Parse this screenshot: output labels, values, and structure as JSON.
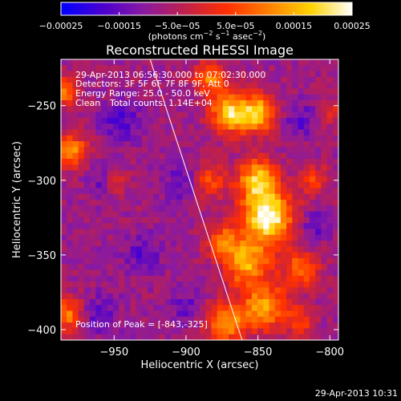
{
  "chart_data": {
    "type": "heatmap",
    "title": "Reconstructed RHESSI Image",
    "xlabel": "Heliocentric X (arcsec)",
    "ylabel": "Heliocentric Y (arcsec)",
    "xlim": [
      -987,
      -794
    ],
    "ylim": [
      -407,
      -219
    ],
    "x_ticks": [
      -950,
      -900,
      -850,
      -800
    ],
    "y_ticks": [
      -250,
      -300,
      -350,
      -400
    ],
    "x_tick_labels": [
      "−950",
      "−900",
      "−850",
      "−800"
    ],
    "y_tick_labels": [
      "−250",
      "−300",
      "−350",
      "−400"
    ],
    "colorbar": {
      "range": [
        -0.00025,
        0.00025
      ],
      "tick_values": [
        -0.00025,
        -0.00015,
        -5e-05,
        5e-05,
        0.00015,
        0.00025
      ],
      "tick_labels": [
        "−0.00025",
        "−0.00015",
        "−5.0e−05",
        "5.0e−05",
        "0.00015",
        "0.00025"
      ],
      "stops": [
        "#0000ff",
        "#4a00d0",
        "#8a1aa0",
        "#c0204a",
        "#ff3000",
        "#ff8000",
        "#ffd200",
        "#ffffff"
      ]
    },
    "limb_line": [
      [
        -925,
        -219
      ],
      [
        -861,
        -407
      ]
    ],
    "peak": [
      -843,
      -325
    ],
    "hot_regions": [
      {
        "x": -843,
        "y": -325,
        "w": 12,
        "amp": 1.0
      },
      {
        "x": -850,
        "y": -300,
        "w": 10,
        "amp": 0.75
      },
      {
        "x": -870,
        "y": -255,
        "w": 9,
        "amp": 0.8
      },
      {
        "x": -850,
        "y": -255,
        "w": 9,
        "amp": 0.75
      },
      {
        "x": -883,
        "y": -232,
        "w": 8,
        "amp": 0.55
      },
      {
        "x": -858,
        "y": -355,
        "w": 11,
        "amp": 0.7
      },
      {
        "x": -845,
        "y": -385,
        "w": 11,
        "amp": 0.65
      },
      {
        "x": -872,
        "y": -395,
        "w": 10,
        "amp": 0.6
      },
      {
        "x": -820,
        "y": -360,
        "w": 9,
        "amp": 0.5
      },
      {
        "x": -810,
        "y": -300,
        "w": 7,
        "amp": 0.35
      },
      {
        "x": -885,
        "y": -300,
        "w": 9,
        "amp": 0.45
      },
      {
        "x": -875,
        "y": -340,
        "w": 8,
        "amp": 0.45
      },
      {
        "x": -980,
        "y": -280,
        "w": 8,
        "amp": 0.6
      },
      {
        "x": -985,
        "y": -240,
        "w": 7,
        "amp": 0.55
      },
      {
        "x": -983,
        "y": -390,
        "w": 8,
        "amp": 0.55
      },
      {
        "x": -948,
        "y": -300,
        "w": 5,
        "amp": 0.35
      },
      {
        "x": -820,
        "y": -395,
        "w": 7,
        "amp": 0.35
      },
      {
        "x": -800,
        "y": -255,
        "w": 6,
        "amp": 0.3
      }
    ],
    "cold_regions": [
      {
        "x": -945,
        "y": -260,
        "w": 10,
        "amp": 0.5
      },
      {
        "x": -900,
        "y": -300,
        "w": 10,
        "amp": 0.55
      },
      {
        "x": -930,
        "y": -350,
        "w": 9,
        "amp": 0.45
      },
      {
        "x": -960,
        "y": -390,
        "w": 9,
        "amp": 0.45
      },
      {
        "x": -900,
        "y": -385,
        "w": 8,
        "amp": 0.4
      },
      {
        "x": -820,
        "y": -260,
        "w": 8,
        "amp": 0.5
      },
      {
        "x": -810,
        "y": -330,
        "w": 7,
        "amp": 0.45
      },
      {
        "x": -958,
        "y": -300,
        "w": 7,
        "amp": 0.35
      }
    ],
    "annotations": {
      "time": "29-Apr-2013 06:56:30.000 to 07:02:30.000",
      "detectors": "Detectors: 3F 5F 6F 7F 8F 9F, Att 0",
      "energy": "Energy Range: 25.0 - 50.0 keV",
      "clean": "Clean",
      "total_counts": "Total counts: 1.14E+04",
      "peak_label": "Position of Peak = [-843,-325]"
    },
    "timestamp": "29-Apr-2013 10:31"
  }
}
